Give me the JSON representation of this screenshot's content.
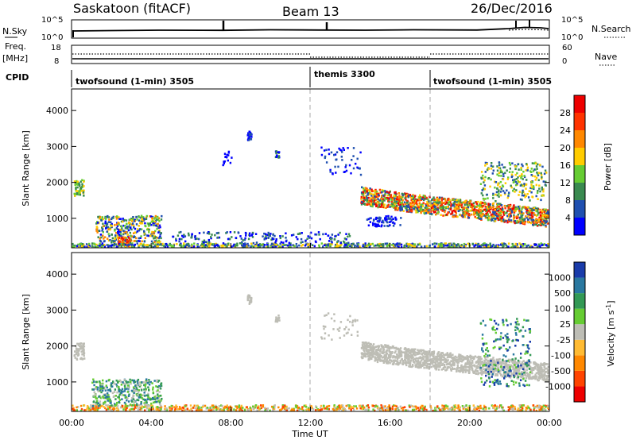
{
  "header": {
    "station": "Saskatoon (fitACF)",
    "beam": "Beam 13",
    "date": "26/Dec/2016"
  },
  "top_panels": {
    "nsky_label": "N.Sky",
    "nsky_ticks": [
      "10^5",
      "10^0"
    ],
    "nsearch_label": "N.Search",
    "nsearch_ticks": [
      "10^5",
      "10^0"
    ],
    "freq_label": "Freq.",
    "freq_unit": "[MHz]",
    "freq_ticks": [
      "18",
      "8"
    ],
    "nave_label": "Nave",
    "nave_ticks": [
      "60",
      "0"
    ],
    "cpid_label": "CPID",
    "cpid_segments": [
      {
        "label": "twofsound (1-min) 3505",
        "start_hour": 0
      },
      {
        "label": "themis 3300",
        "start_hour": 12
      },
      {
        "label": "twofsound (1-min) 3505",
        "start_hour": 18
      }
    ]
  },
  "x_axis": {
    "label": "Time UT",
    "ticks": [
      "00:00",
      "04:00",
      "08:00",
      "12:00",
      "16:00",
      "20:00",
      "00:00"
    ]
  },
  "power_panel": {
    "ylabel": "Slant Range [km]",
    "yticks": [
      "4000",
      "3000",
      "2000",
      "1000"
    ],
    "colorbar_label": "Power [dB]",
    "colorbar_ticks": [
      "28",
      "24",
      "20",
      "16",
      "12",
      "8",
      "4"
    ],
    "colors": [
      "#0000ff",
      "#2050b0",
      "#3a8a50",
      "#66cc33",
      "#ffcc00",
      "#ff8800",
      "#ff3300",
      "#ee0000"
    ]
  },
  "velocity_panel": {
    "ylabel": "Slant Range [km]",
    "yticks": [
      "4000",
      "3000",
      "2000",
      "1000"
    ],
    "colorbar_label": "Velocity [m s",
    "colorbar_unit_sup": "-1",
    "colorbar_ticks": [
      "1000",
      "500",
      "100",
      "25",
      "-25",
      "-100",
      "-500",
      "-1000"
    ],
    "colors": [
      "#1a3caa",
      "#2a78a0",
      "#339955",
      "#66cc33",
      "#bdbdb5",
      "#ffbb33",
      "#ff8800",
      "#ff4400",
      "#ee0000"
    ],
    "ground_scatter_color": "#bdbdb5"
  },
  "chart_data": {
    "type": "heatmap",
    "title": "Saskatoon (fitACF)",
    "xlabel": "Time UT",
    "ylabel": "Slant Range [km]",
    "xlim_hours": [
      0,
      24
    ],
    "ylim_km": [
      180,
      4600
    ],
    "grid": false,
    "mode_change_hours": [
      12,
      18
    ],
    "power_regions": [
      {
        "t0": 0.1,
        "t1": 0.6,
        "r0": 1650,
        "r1": 2100,
        "level": "12-24"
      },
      {
        "t0": 1.2,
        "t1": 4.5,
        "r0": 300,
        "r1": 1150,
        "level": "8-28"
      },
      {
        "t0": 0,
        "t1": 24,
        "r0": 180,
        "r1": 350,
        "level": "4-16"
      },
      {
        "t0": 8.8,
        "t1": 9.0,
        "r0": 3200,
        "r1": 3450,
        "level": "8"
      },
      {
        "t0": 14.5,
        "t1": 23.9,
        "r0": 1000,
        "r1": 2200,
        "level": "8-28"
      }
    ],
    "velocity_regions": [
      {
        "t0": 0,
        "t1": 24,
        "r0": 180,
        "r1": 400,
        "value_ms": "-25 to -500"
      },
      {
        "t0": 1.0,
        "t1": 4.5,
        "r0": 300,
        "r1": 1100,
        "value_ms": "25 to 500"
      },
      {
        "t0": 14.5,
        "t1": 23.9,
        "r0": 1300,
        "r1": 2100,
        "value_ms": "-25 to 25"
      },
      {
        "t0": 20.5,
        "t1": 23.0,
        "r0": 900,
        "r1": 2800,
        "value_ms": "100 to 1000"
      }
    ]
  }
}
